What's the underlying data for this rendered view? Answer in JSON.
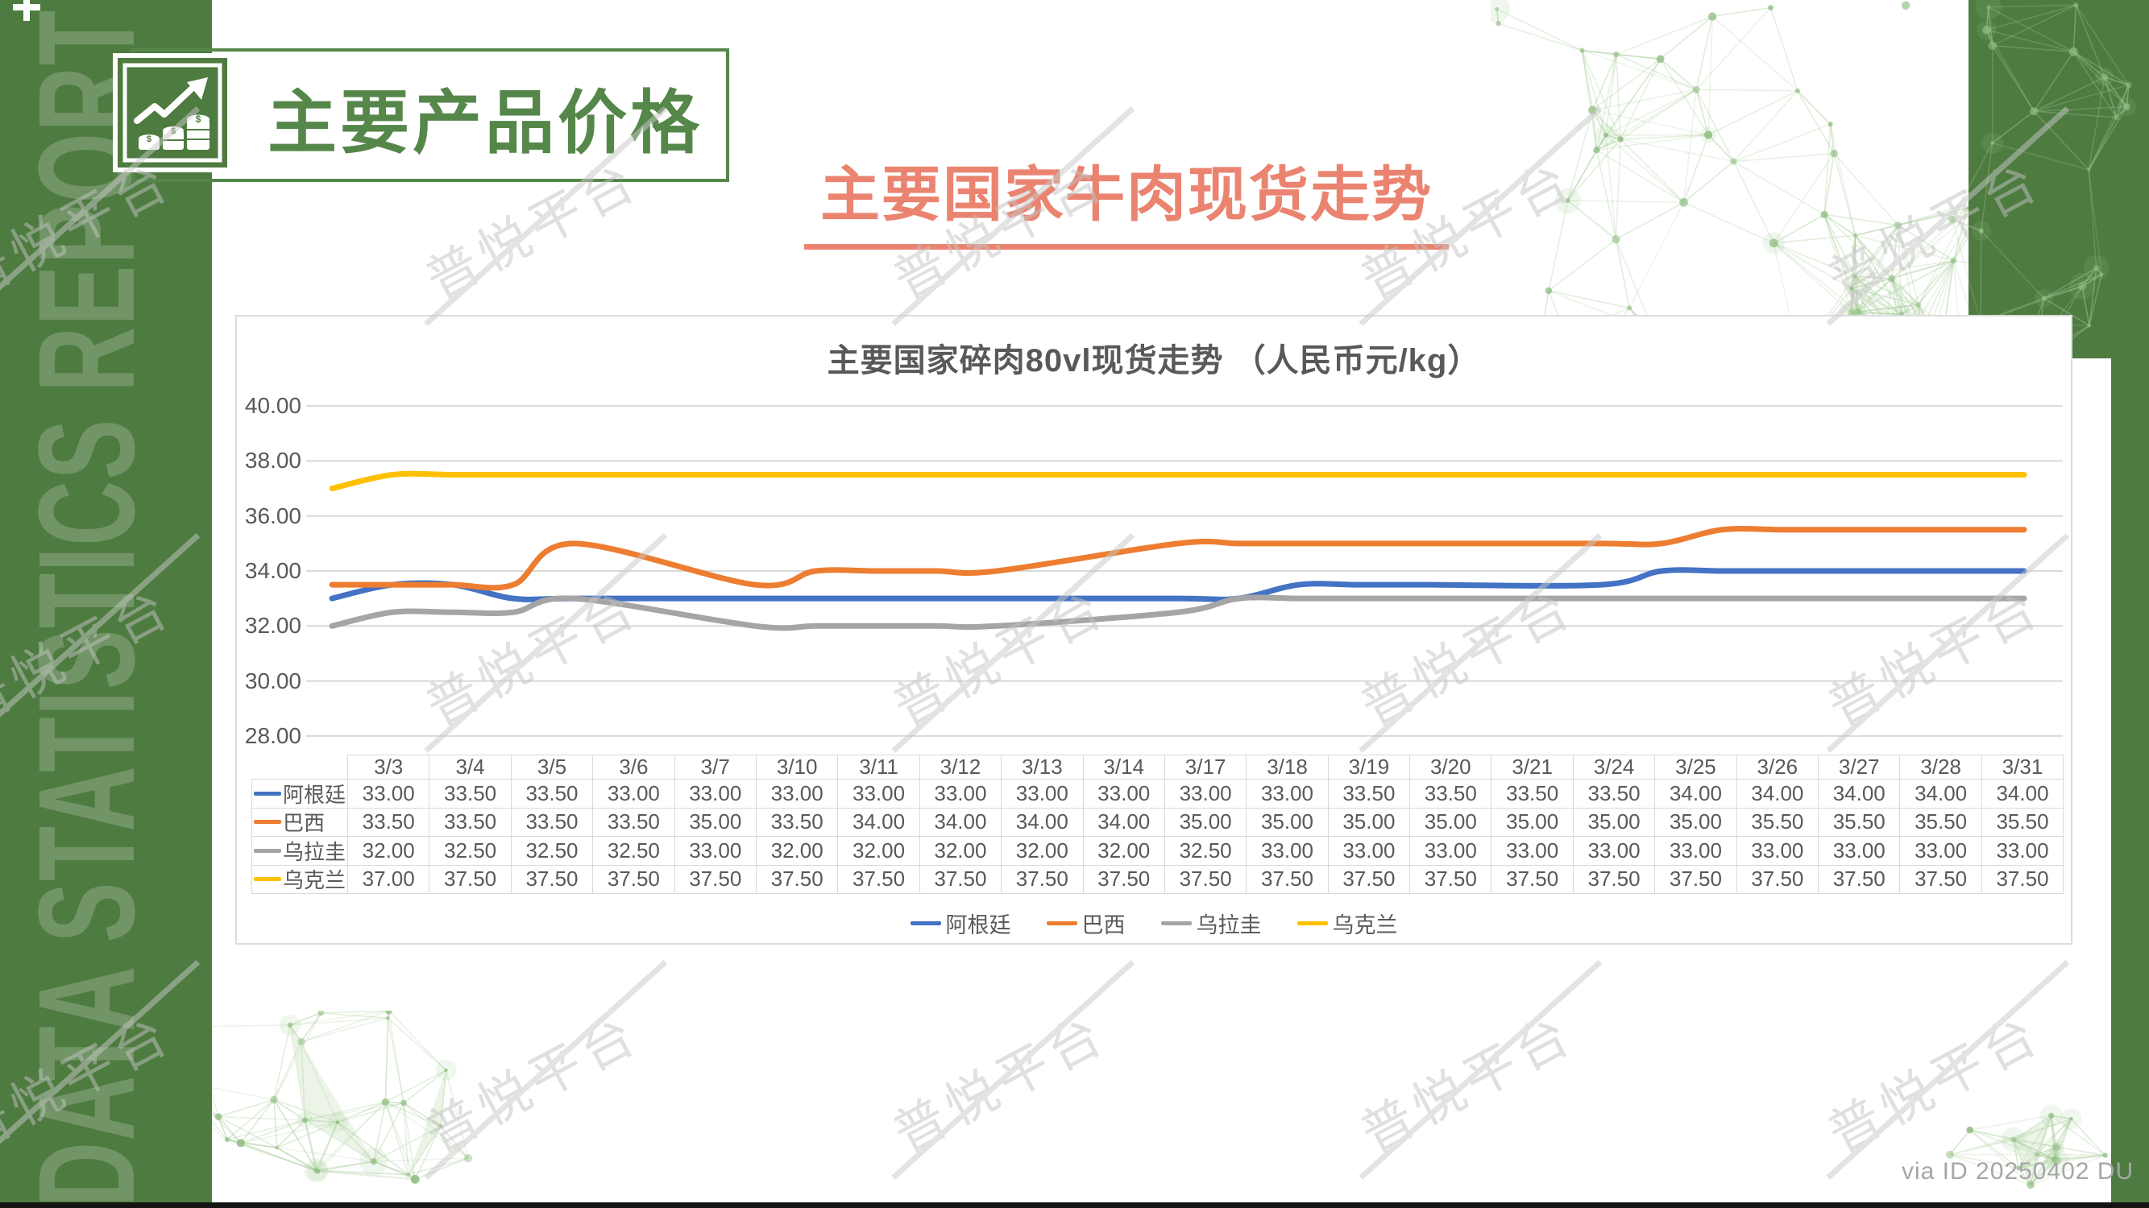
{
  "slide": {
    "sidebar_text": "DATA STATISTICS REPORT",
    "section_title": "主要产品价格",
    "page_title": "主要国家牛肉现货走势",
    "watermark": "普悦平台",
    "source_note": "via ID 20250402 DU",
    "colors": {
      "accent_green": "#55874a",
      "accent_salmon": "#EA8470"
    }
  },
  "chart_data": {
    "type": "line",
    "title": "主要国家碎肉80vl现货走势 （人民币元/kg）",
    "x_axis": "date",
    "categories": [
      "3/3",
      "3/4",
      "3/5",
      "3/6",
      "3/7",
      "3/10",
      "3/11",
      "3/12",
      "3/13",
      "3/14",
      "3/17",
      "3/18",
      "3/19",
      "3/20",
      "3/21",
      "3/24",
      "3/25",
      "3/26",
      "3/27",
      "3/28",
      "3/31"
    ],
    "series": [
      {
        "name": "阿根廷",
        "color": "#4472C4",
        "values": [
          33.0,
          33.5,
          33.5,
          33.0,
          33.0,
          33.0,
          33.0,
          33.0,
          33.0,
          33.0,
          33.0,
          33.0,
          33.5,
          33.5,
          33.5,
          33.5,
          34.0,
          34.0,
          34.0,
          34.0,
          34.0
        ]
      },
      {
        "name": "巴西",
        "color": "#ED7D31",
        "values": [
          33.5,
          33.5,
          33.5,
          33.5,
          35.0,
          33.5,
          34.0,
          34.0,
          34.0,
          34.0,
          35.0,
          35.0,
          35.0,
          35.0,
          35.0,
          35.0,
          35.0,
          35.5,
          35.5,
          35.5,
          35.5
        ]
      },
      {
        "name": "乌拉圭",
        "color": "#A5A5A5",
        "values": [
          32.0,
          32.5,
          32.5,
          32.5,
          33.0,
          32.0,
          32.0,
          32.0,
          32.0,
          32.0,
          32.5,
          33.0,
          33.0,
          33.0,
          33.0,
          33.0,
          33.0,
          33.0,
          33.0,
          33.0,
          33.0
        ]
      },
      {
        "name": "乌克兰",
        "color": "#FFC000",
        "values": [
          37.0,
          37.5,
          37.5,
          37.5,
          37.5,
          37.5,
          37.5,
          37.5,
          37.5,
          37.5,
          37.5,
          37.5,
          37.5,
          37.5,
          37.5,
          37.5,
          37.5,
          37.5,
          37.5,
          37.5,
          37.5
        ]
      }
    ],
    "y_ticks": [
      "40.00",
      "38.00",
      "36.00",
      "34.00",
      "32.00",
      "30.00",
      "28.00"
    ],
    "ylim": [
      28,
      40
    ],
    "grid": true,
    "smooth": true,
    "legend_position": "bottom"
  }
}
